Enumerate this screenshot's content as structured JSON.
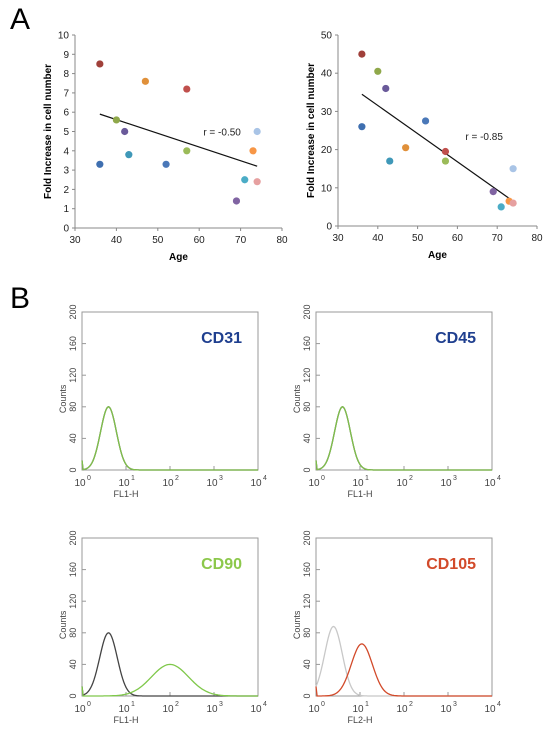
{
  "panels": {
    "a_label": "A",
    "b_label": "B"
  },
  "chart_data": [
    {
      "panel": "A",
      "type": "scatter",
      "xlabel": "Age",
      "ylabel": "Fold Increase in cell number",
      "xlim": [
        30,
        80
      ],
      "ylim": [
        0,
        10
      ],
      "xticks": [
        30,
        40,
        50,
        60,
        70,
        80
      ],
      "yticks": [
        0,
        1,
        2,
        3,
        4,
        5,
        6,
        7,
        8,
        9,
        10
      ],
      "annotation": "r = -0.50",
      "trendline": {
        "x": [
          36,
          74
        ],
        "y": [
          5.9,
          3.2
        ]
      },
      "points": [
        {
          "x": 36,
          "y": 8.5,
          "color": "#a0403a"
        },
        {
          "x": 36,
          "y": 3.3,
          "color": "#3f6fb0"
        },
        {
          "x": 40,
          "y": 5.6,
          "color": "#8fa84a"
        },
        {
          "x": 42,
          "y": 5.0,
          "color": "#6a5a9a"
        },
        {
          "x": 43,
          "y": 3.8,
          "color": "#3f98b8"
        },
        {
          "x": 47,
          "y": 7.6,
          "color": "#e0903a"
        },
        {
          "x": 52,
          "y": 3.3,
          "color": "#4a78b8"
        },
        {
          "x": 57,
          "y": 7.2,
          "color": "#c0504d"
        },
        {
          "x": 57,
          "y": 4.0,
          "color": "#9bbb59"
        },
        {
          "x": 69,
          "y": 1.4,
          "color": "#8064a2"
        },
        {
          "x": 71,
          "y": 2.5,
          "color": "#4bacc6"
        },
        {
          "x": 73,
          "y": 4.0,
          "color": "#f79646"
        },
        {
          "x": 74,
          "y": 5.0,
          "color": "#a9c4e6"
        },
        {
          "x": 74,
          "y": 2.4,
          "color": "#e6a0a0"
        }
      ]
    },
    {
      "panel": "A",
      "type": "scatter",
      "xlabel": "Age",
      "ylabel": "Fold Increase in cell number",
      "xlim": [
        30,
        80
      ],
      "ylim": [
        0,
        50
      ],
      "xticks": [
        30,
        40,
        50,
        60,
        70,
        80
      ],
      "yticks": [
        0,
        10,
        20,
        30,
        40,
        50
      ],
      "annotation": "r = -0.85",
      "trendline": {
        "x": [
          36,
          74
        ],
        "y": [
          34.5,
          6.5
        ]
      },
      "points": [
        {
          "x": 36,
          "y": 45,
          "color": "#a0403a"
        },
        {
          "x": 36,
          "y": 26,
          "color": "#3f6fb0"
        },
        {
          "x": 40,
          "y": 40.5,
          "color": "#8fa84a"
        },
        {
          "x": 42,
          "y": 36,
          "color": "#6a5a9a"
        },
        {
          "x": 43,
          "y": 17,
          "color": "#3f98b8"
        },
        {
          "x": 47,
          "y": 20.5,
          "color": "#e0903a"
        },
        {
          "x": 52,
          "y": 27.5,
          "color": "#4a78b8"
        },
        {
          "x": 57,
          "y": 19.5,
          "color": "#c0504d"
        },
        {
          "x": 57,
          "y": 17,
          "color": "#9bbb59"
        },
        {
          "x": 69,
          "y": 9,
          "color": "#8064a2"
        },
        {
          "x": 71,
          "y": 5,
          "color": "#4bacc6"
        },
        {
          "x": 73,
          "y": 6.5,
          "color": "#f79646"
        },
        {
          "x": 74,
          "y": 15,
          "color": "#a9c4e6"
        },
        {
          "x": 74,
          "y": 6,
          "color": "#e6a0a0"
        }
      ]
    },
    {
      "panel": "B",
      "type": "line",
      "title": "CD31",
      "title_color": "#1f3f8f",
      "xlabel": "FL1-H",
      "ylabel": "Counts",
      "xscale": "log",
      "xlim": [
        1,
        10000
      ],
      "ylim": [
        0,
        200
      ],
      "yticks": [
        0,
        40,
        80,
        120,
        160,
        200
      ],
      "xtick_bases": [
        "10",
        "10",
        "10",
        "10",
        "10"
      ],
      "xtick_exps": [
        "0",
        "1",
        "2",
        "3",
        "4"
      ],
      "series": [
        {
          "color": "#555555",
          "peak_x": 4,
          "peak_y": 80,
          "width": 0.18,
          "start": 0
        },
        {
          "color": "#7fbf4a",
          "peak_x": 4,
          "peak_y": 80,
          "width": 0.18,
          "start": 0
        }
      ]
    },
    {
      "panel": "B",
      "type": "line",
      "title": "CD45",
      "title_color": "#1f3f8f",
      "xlabel": "FL1-H",
      "ylabel": "Counts",
      "xscale": "log",
      "xlim": [
        1,
        10000
      ],
      "ylim": [
        0,
        200
      ],
      "yticks": [
        0,
        40,
        80,
        120,
        160,
        200
      ],
      "xtick_bases": [
        "10",
        "10",
        "10",
        "10",
        "10"
      ],
      "xtick_exps": [
        "0",
        "1",
        "2",
        "3",
        "4"
      ],
      "series": [
        {
          "color": "#555555",
          "peak_x": 4,
          "peak_y": 80,
          "width": 0.18,
          "start": 0
        },
        {
          "color": "#7fbf4a",
          "peak_x": 4,
          "peak_y": 80,
          "width": 0.18,
          "start": 0
        }
      ]
    },
    {
      "panel": "B",
      "type": "line",
      "title": "CD90",
      "title_color": "#8cc84b",
      "xlabel": "FL1-H",
      "ylabel": "Counts",
      "xscale": "log",
      "xlim": [
        1,
        10000
      ],
      "ylim": [
        0,
        200
      ],
      "yticks": [
        0,
        40,
        80,
        120,
        160,
        200
      ],
      "xtick_bases": [
        "10",
        "10",
        "10",
        "10",
        "10"
      ],
      "xtick_exps": [
        "0",
        "1",
        "2",
        "3",
        "4"
      ],
      "series": [
        {
          "color": "#444444",
          "peak_x": 4,
          "peak_y": 80,
          "width": 0.2,
          "start": 0
        },
        {
          "color": "#7fc84a",
          "peak_x": 100,
          "peak_y": 40,
          "width": 0.42,
          "start": 0
        }
      ]
    },
    {
      "panel": "B",
      "type": "line",
      "title": "CD105",
      "title_color": "#d24a2a",
      "xlabel": "FL2-H",
      "ylabel": "Counts",
      "xscale": "log",
      "xlim": [
        1,
        10000
      ],
      "ylim": [
        0,
        200
      ],
      "yticks": [
        0,
        40,
        80,
        120,
        160,
        200
      ],
      "xtick_bases": [
        "10",
        "10",
        "10",
        "10",
        "10"
      ],
      "xtick_exps": [
        "0",
        "1",
        "2",
        "3",
        "4"
      ],
      "series": [
        {
          "color": "#c8c8c8",
          "peak_x": 2.5,
          "peak_y": 88,
          "width": 0.2,
          "start": 0
        },
        {
          "color": "#d24a2a",
          "peak_x": 11,
          "peak_y": 66,
          "width": 0.24,
          "start": 0
        }
      ]
    }
  ]
}
